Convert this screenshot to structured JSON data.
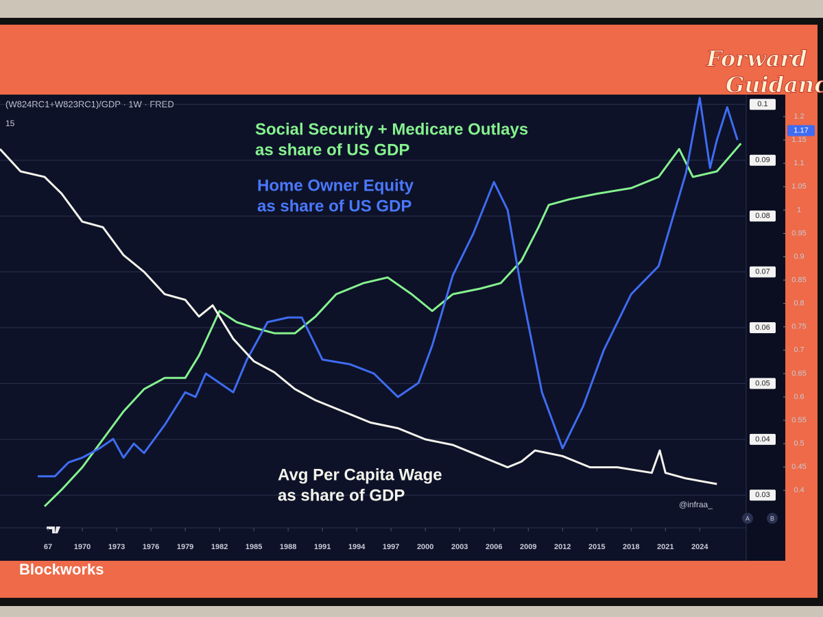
{
  "chart_data": {
    "type": "line",
    "title": "(W824RC1+W823RC1)/GDP · 1W · FRED",
    "indicator": 15,
    "xlim": [
      1962.8,
      2028
    ],
    "xticks": [
      {
        "value": 1967,
        "label": "67"
      },
      1970,
      1973,
      1976,
      1979,
      1982,
      1985,
      1988,
      1991,
      1994,
      1997,
      2000,
      2003,
      2006,
      2009,
      2012,
      2015,
      2018,
      2021,
      2024
    ],
    "ylim": [
      0.025,
      0.102
    ],
    "yticks": [
      0.03,
      0.04,
      0.05,
      0.06,
      0.07,
      0.08,
      0.09,
      0.1
    ],
    "y2lim": [
      0.33,
      1.25
    ],
    "y2ticks": [
      0.4,
      0.45,
      0.5,
      0.55,
      0.6,
      0.65,
      0.7,
      0.75,
      0.8,
      0.85,
      0.9,
      0.95,
      1,
      1.05,
      1.1,
      1.15,
      1.2
    ],
    "y2_current": 1.17,
    "grid": true,
    "series": [
      {
        "name": "Social Security + Medicare Outlays",
        "color": "#86f28f",
        "x": [
          1966.7,
          1968.2,
          1970,
          1971.8,
          1973.6,
          1975.4,
          1977.2,
          1979,
          1980.2,
          1982,
          1983.5,
          1985,
          1986.8,
          1988.6,
          1990.4,
          1992.2,
          1994.6,
          1996.7,
          1998.8,
          2000.6,
          2002.4,
          2004.8,
          2006.6,
          2008.4,
          2009.9,
          2010.8,
          2012.6,
          2015,
          2018,
          2020.4,
          2022.2,
          2023.4,
          2025.5,
          2027.6
        ],
        "values": [
          0.028,
          0.031,
          0.035,
          0.04,
          0.045,
          0.049,
          0.051,
          0.051,
          0.055,
          0.063,
          0.061,
          0.06,
          0.059,
          0.059,
          0.062,
          0.066,
          0.068,
          0.069,
          0.066,
          0.063,
          0.066,
          0.067,
          0.068,
          0.072,
          0.078,
          0.082,
          0.083,
          0.084,
          0.085,
          0.087,
          0.092,
          0.087,
          0.088,
          0.093
        ]
      },
      {
        "name": "Home Owner Equity",
        "color": "#3f6cf2",
        "axis": "y2",
        "x": [
          1966.1,
          1967.6,
          1968.8,
          1970,
          1971.5,
          1972.7,
          1973.6,
          1974.5,
          1975.4,
          1977.2,
          1979,
          1979.9,
          1980.8,
          1982,
          1983.2,
          1984.4,
          1986.2,
          1988,
          1989.2,
          1991,
          1993.4,
          1995.5,
          1997.6,
          1999.4,
          2000.6,
          2002.4,
          2004.2,
          2006,
          2007.2,
          2008.4,
          2010.2,
          2012,
          2013.8,
          2015.6,
          2018,
          2020.4,
          2021.6,
          2022.8,
          2024,
          2024.9,
          2025.5,
          2026.4,
          2027.3
        ],
        "values": [
          0.43,
          0.43,
          0.46,
          0.47,
          0.49,
          0.51,
          0.47,
          0.5,
          0.48,
          0.54,
          0.61,
          0.6,
          0.65,
          0.63,
          0.61,
          0.68,
          0.76,
          0.77,
          0.77,
          0.68,
          0.67,
          0.65,
          0.6,
          0.63,
          0.71,
          0.86,
          0.95,
          1.06,
          1,
          0.83,
          0.61,
          0.49,
          0.58,
          0.7,
          0.82,
          0.88,
          0.98,
          1.08,
          1.24,
          1.09,
          1.15,
          1.22,
          1.15
        ]
      },
      {
        "name": "Avg Per Capita Wage",
        "color": "#f4f4ec",
        "x": [
          1962.8,
          1964.6,
          1966.7,
          1968.2,
          1970,
          1971.8,
          1973.6,
          1975.4,
          1977.2,
          1979,
          1980.2,
          1981.4,
          1983.2,
          1985,
          1986.8,
          1988.6,
          1990.4,
          1992.8,
          1995.2,
          1997.6,
          2000,
          2002.4,
          2004.8,
          2007.2,
          2008.4,
          2009.6,
          2012,
          2014.4,
          2016.8,
          2019.8,
          2020.5,
          2021,
          2022.8,
          2025.5
        ],
        "values": [
          0.092,
          0.088,
          0.087,
          0.084,
          0.079,
          0.078,
          0.073,
          0.07,
          0.066,
          0.065,
          0.062,
          0.064,
          0.058,
          0.054,
          0.052,
          0.049,
          0.047,
          0.045,
          0.043,
          0.042,
          0.04,
          0.039,
          0.037,
          0.035,
          0.036,
          0.038,
          0.037,
          0.035,
          0.035,
          0.034,
          0.038,
          0.034,
          0.033,
          0.032
        ]
      }
    ],
    "annotations": [
      {
        "text": [
          "Social Security + Medicare Outlays",
          "as share of US GDP"
        ],
        "color": "#86f28f"
      },
      {
        "text": [
          "Home Owner Equity",
          "as share of US GDP"
        ],
        "color": "#4a78ff"
      },
      {
        "text": [
          "Avg Per Capita Wage",
          "as share of GDP"
        ],
        "color": "#f4f4ec"
      }
    ],
    "watermark": "@infraa_",
    "scale_buttons": [
      "A",
      "B"
    ]
  },
  "branding": {
    "show": [
      "Forward",
      "Guidance"
    ],
    "company": "Blockworks"
  }
}
